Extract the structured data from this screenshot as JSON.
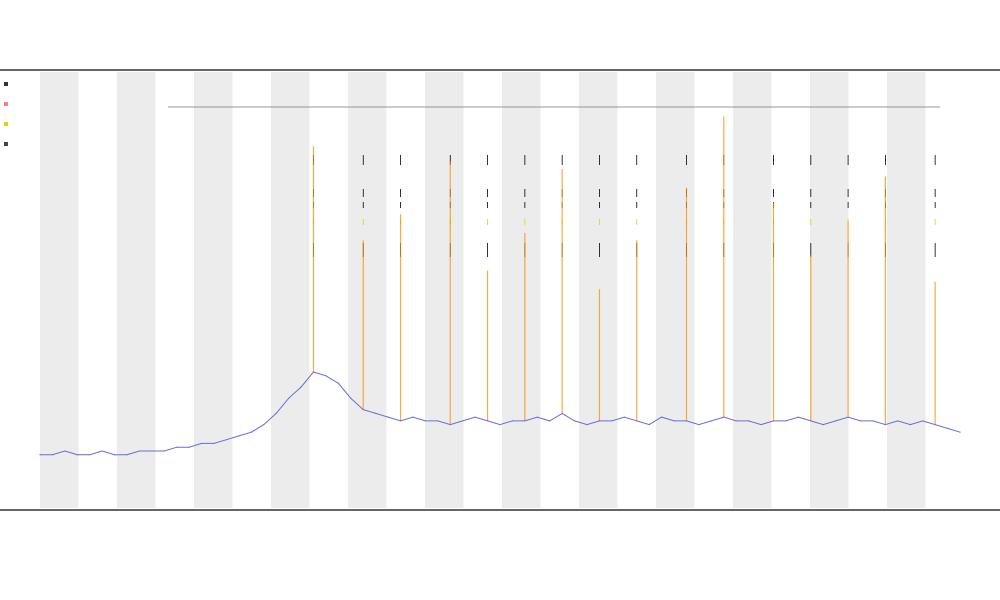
{
  "chart_data": {
    "type": "line",
    "title": "",
    "subtitle_lines": [
      "",
      ""
    ],
    "xlabel": "",
    "ylabel": "",
    "legend": {
      "placement": "top-left",
      "entries": [
        {
          "name": "",
          "color": "#333333"
        },
        {
          "name": "",
          "color": "#f08080"
        },
        {
          "name": "",
          "color": "#e6d200"
        },
        {
          "name": "",
          "color": "#444444"
        }
      ]
    },
    "grid": false,
    "background_bands": true,
    "colors": {
      "baseline": "#6b6bd6",
      "peaks": "#ff8c00",
      "band": "#ececec",
      "gene_track": "#000000"
    },
    "series": [
      {
        "name": "",
        "values": [
          3,
          3,
          4,
          3,
          3,
          4,
          3,
          3,
          4,
          4,
          4,
          5,
          5,
          6,
          6,
          7,
          8,
          9,
          11,
          14,
          18,
          21,
          25,
          24,
          22,
          18,
          15,
          14,
          13,
          12,
          13,
          12,
          12,
          11,
          12,
          13,
          12,
          11,
          12,
          12,
          13,
          12,
          14,
          12,
          11,
          12,
          12,
          13,
          12,
          11,
          13,
          12,
          12,
          11,
          12,
          13,
          12,
          12,
          11,
          12,
          12,
          13,
          12,
          11,
          12,
          13,
          12,
          12,
          11,
          12,
          11,
          12,
          11,
          10,
          9
        ]
      },
      {
        "name": "",
        "values": [
          0,
          0,
          0,
          0,
          0,
          0,
          0,
          0,
          0,
          0,
          0,
          0,
          0,
          0,
          0,
          0,
          0,
          0,
          0,
          0,
          0,
          0,
          60,
          0,
          0,
          0,
          45,
          0,
          0,
          55,
          0,
          0,
          0,
          70,
          0,
          0,
          40,
          0,
          0,
          50,
          0,
          0,
          65,
          0,
          0,
          35,
          0,
          0,
          48,
          0,
          0,
          0,
          62,
          0,
          0,
          80,
          0,
          0,
          0,
          58,
          0,
          0,
          44,
          0,
          0,
          52,
          0,
          0,
          66,
          0,
          0,
          0,
          38,
          0,
          0
        ]
      }
    ],
    "ylim": [
      0,
      100
    ]
  }
}
